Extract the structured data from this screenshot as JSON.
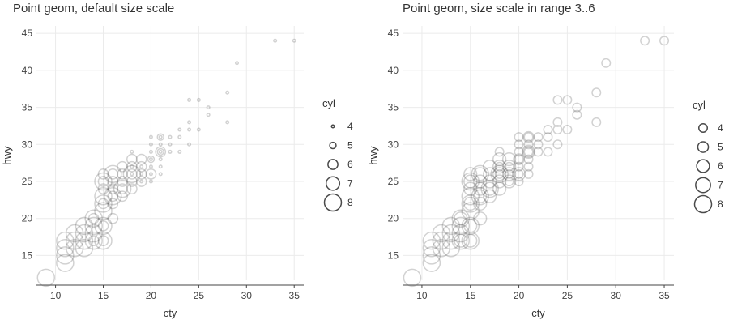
{
  "chart_data": [
    {
      "type": "scatter",
      "title": "Point geom, default size scale",
      "xlabel": "cty",
      "ylabel": "hwy",
      "xlim": [
        8,
        36
      ],
      "ylim": [
        11,
        46
      ],
      "xticks": [
        10,
        15,
        20,
        25,
        30,
        35
      ],
      "yticks": [
        15,
        20,
        25,
        30,
        35,
        40,
        45
      ],
      "grid": true,
      "legend": {
        "title": "cyl",
        "position": "right",
        "entries": [
          "4",
          "5",
          "6",
          "7",
          "8"
        ],
        "size_range": [
          1,
          6
        ]
      },
      "size_range": [
        1,
        6
      ],
      "points": [
        {
          "x": 35,
          "y": 44,
          "cyl": 4
        },
        {
          "x": 33,
          "y": 44,
          "cyl": 4
        },
        {
          "x": 29,
          "y": 41,
          "cyl": 4
        },
        {
          "x": 28,
          "y": 37,
          "cyl": 4
        },
        {
          "x": 28,
          "y": 33,
          "cyl": 4
        },
        {
          "x": 26,
          "y": 35,
          "cyl": 4
        },
        {
          "x": 26,
          "y": 34,
          "cyl": 4
        },
        {
          "x": 25,
          "y": 36,
          "cyl": 4
        },
        {
          "x": 24,
          "y": 36,
          "cyl": 4
        },
        {
          "x": 25,
          "y": 32,
          "cyl": 4
        },
        {
          "x": 24,
          "y": 33,
          "cyl": 4
        },
        {
          "x": 24,
          "y": 32,
          "cyl": 4
        },
        {
          "x": 24,
          "y": 30,
          "cyl": 4
        },
        {
          "x": 23,
          "y": 32,
          "cyl": 4
        },
        {
          "x": 23,
          "y": 31,
          "cyl": 4
        },
        {
          "x": 23,
          "y": 29,
          "cyl": 4
        },
        {
          "x": 22,
          "y": 31,
          "cyl": 4
        },
        {
          "x": 22,
          "y": 30,
          "cyl": 4
        },
        {
          "x": 22,
          "y": 29,
          "cyl": 4
        },
        {
          "x": 21,
          "y": 31,
          "cyl": 4
        },
        {
          "x": 21,
          "y": 30,
          "cyl": 4
        },
        {
          "x": 21,
          "y": 29,
          "cyl": 4
        },
        {
          "x": 21,
          "y": 28,
          "cyl": 4
        },
        {
          "x": 21,
          "y": 27,
          "cyl": 4
        },
        {
          "x": 21,
          "y": 26,
          "cyl": 4
        },
        {
          "x": 20,
          "y": 31,
          "cyl": 4
        },
        {
          "x": 20,
          "y": 30,
          "cyl": 4
        },
        {
          "x": 20,
          "y": 29,
          "cyl": 4
        },
        {
          "x": 20,
          "y": 28,
          "cyl": 4
        },
        {
          "x": 20,
          "y": 27,
          "cyl": 4
        },
        {
          "x": 20,
          "y": 26,
          "cyl": 4
        },
        {
          "x": 19,
          "y": 27,
          "cyl": 4
        },
        {
          "x": 19,
          "y": 26,
          "cyl": 4
        },
        {
          "x": 18,
          "y": 29,
          "cyl": 4
        },
        {
          "x": 18,
          "y": 27,
          "cyl": 4
        },
        {
          "x": 18,
          "y": 26,
          "cyl": 4
        },
        {
          "x": 19,
          "y": 25,
          "cyl": 4
        },
        {
          "x": 20,
          "y": 25,
          "cyl": 4
        },
        {
          "x": 21,
          "y": 29,
          "cyl": 5
        },
        {
          "x": 20,
          "y": 28,
          "cyl": 5
        },
        {
          "x": 21,
          "y": 31,
          "cyl": 5
        },
        {
          "x": 20,
          "y": 26,
          "cyl": 6
        },
        {
          "x": 19,
          "y": 28,
          "cyl": 6
        },
        {
          "x": 19,
          "y": 27,
          "cyl": 6
        },
        {
          "x": 19,
          "y": 26,
          "cyl": 6
        },
        {
          "x": 19,
          "y": 25,
          "cyl": 6
        },
        {
          "x": 18,
          "y": 28,
          "cyl": 6
        },
        {
          "x": 18,
          "y": 27,
          "cyl": 6
        },
        {
          "x": 18,
          "y": 26,
          "cyl": 6
        },
        {
          "x": 18,
          "y": 25,
          "cyl": 6
        },
        {
          "x": 18,
          "y": 24,
          "cyl": 6
        },
        {
          "x": 17,
          "y": 27,
          "cyl": 6
        },
        {
          "x": 17,
          "y": 26,
          "cyl": 6
        },
        {
          "x": 17,
          "y": 25,
          "cyl": 6
        },
        {
          "x": 17,
          "y": 24,
          "cyl": 6
        },
        {
          "x": 17,
          "y": 23,
          "cyl": 6
        },
        {
          "x": 16,
          "y": 26,
          "cyl": 6
        },
        {
          "x": 16,
          "y": 25,
          "cyl": 6
        },
        {
          "x": 16,
          "y": 24,
          "cyl": 6
        },
        {
          "x": 16,
          "y": 23,
          "cyl": 6
        },
        {
          "x": 16,
          "y": 22,
          "cyl": 6
        },
        {
          "x": 16,
          "y": 20,
          "cyl": 6
        },
        {
          "x": 15,
          "y": 26,
          "cyl": 6
        },
        {
          "x": 15,
          "y": 25,
          "cyl": 6
        },
        {
          "x": 15,
          "y": 24,
          "cyl": 6
        },
        {
          "x": 15,
          "y": 22,
          "cyl": 6
        },
        {
          "x": 15,
          "y": 17,
          "cyl": 6
        },
        {
          "x": 15,
          "y": 19,
          "cyl": 6
        },
        {
          "x": 14,
          "y": 20,
          "cyl": 6
        },
        {
          "x": 14,
          "y": 17,
          "cyl": 6
        },
        {
          "x": 21,
          "y": 29,
          "cyl": 6
        },
        {
          "x": 18,
          "y": 26,
          "cyl": 8
        },
        {
          "x": 17,
          "y": 24,
          "cyl": 8
        },
        {
          "x": 16,
          "y": 26,
          "cyl": 8
        },
        {
          "x": 16,
          "y": 23,
          "cyl": 8
        },
        {
          "x": 15,
          "y": 25,
          "cyl": 8
        },
        {
          "x": 15,
          "y": 23,
          "cyl": 8
        },
        {
          "x": 15,
          "y": 22,
          "cyl": 8
        },
        {
          "x": 15,
          "y": 21,
          "cyl": 8
        },
        {
          "x": 15,
          "y": 19,
          "cyl": 8
        },
        {
          "x": 15,
          "y": 17,
          "cyl": 8
        },
        {
          "x": 14,
          "y": 20,
          "cyl": 8
        },
        {
          "x": 14,
          "y": 19,
          "cyl": 8
        },
        {
          "x": 14,
          "y": 18,
          "cyl": 8
        },
        {
          "x": 14,
          "y": 17,
          "cyl": 8
        },
        {
          "x": 13,
          "y": 19,
          "cyl": 8
        },
        {
          "x": 13,
          "y": 18,
          "cyl": 8
        },
        {
          "x": 13,
          "y": 17,
          "cyl": 8
        },
        {
          "x": 13,
          "y": 16,
          "cyl": 8
        },
        {
          "x": 12,
          "y": 18,
          "cyl": 8
        },
        {
          "x": 12,
          "y": 17,
          "cyl": 8
        },
        {
          "x": 12,
          "y": 16,
          "cyl": 8
        },
        {
          "x": 11,
          "y": 17,
          "cyl": 8
        },
        {
          "x": 11,
          "y": 16,
          "cyl": 8
        },
        {
          "x": 11,
          "y": 15,
          "cyl": 8
        },
        {
          "x": 11,
          "y": 14,
          "cyl": 8
        },
        {
          "x": 9,
          "y": 12,
          "cyl": 8
        }
      ]
    },
    {
      "type": "scatter",
      "title": "Point geom, size scale in range 3..6",
      "xlabel": "cty",
      "ylabel": "hwy",
      "xlim": [
        8,
        36
      ],
      "ylim": [
        11,
        46
      ],
      "xticks": [
        10,
        15,
        20,
        25,
        30,
        35
      ],
      "yticks": [
        15,
        20,
        25,
        30,
        35,
        40,
        45
      ],
      "grid": true,
      "legend": {
        "title": "cyl",
        "position": "right",
        "entries": [
          "4",
          "5",
          "6",
          "7",
          "8"
        ],
        "size_range": [
          3,
          6
        ]
      },
      "size_range": [
        3,
        6
      ],
      "points": "same as first chart"
    }
  ],
  "colors": {
    "point_stroke": "#4a4a4a",
    "grid": "#ebebeb",
    "axis": "#444444",
    "text": "#333333"
  }
}
